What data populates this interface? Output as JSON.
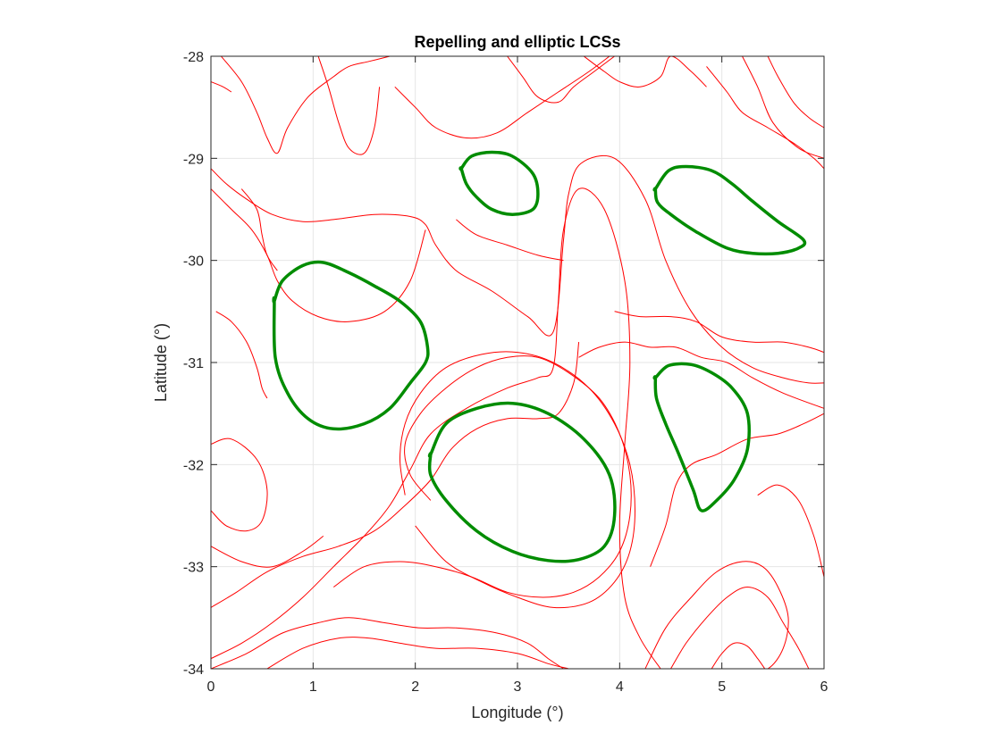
{
  "chart_data": {
    "type": "line",
    "title": "Repelling and elliptic LCSs",
    "xlabel": "Longitude (°)",
    "ylabel": "Latitude (°)",
    "xlim": [
      0,
      6
    ],
    "ylim": [
      -34,
      -28
    ],
    "xticks": [
      0,
      1,
      2,
      3,
      4,
      5,
      6
    ],
    "yticks": [
      -34,
      -33,
      -32,
      -31,
      -30,
      -29,
      -28
    ],
    "xtick_labels": [
      "0",
      "1",
      "2",
      "3",
      "4",
      "5",
      "6"
    ],
    "ytick_labels": [
      "-34",
      "-33",
      "-32",
      "-31",
      "-30",
      "-29",
      "-28"
    ],
    "grid": true,
    "colors": {
      "repelling": "#ff0000",
      "elliptic": "#008c00",
      "grid": "#e6e6e6",
      "axis": "#262626"
    },
    "elliptic_lcs": [
      {
        "x": [
          2.45,
          2.55,
          2.75,
          2.95,
          3.15,
          3.2,
          3.15,
          2.95,
          2.75,
          2.6,
          2.5,
          2.45
        ],
        "y": [
          -29.1,
          -28.98,
          -28.94,
          -28.98,
          -29.15,
          -29.35,
          -29.5,
          -29.55,
          -29.5,
          -29.38,
          -29.25,
          -29.1
        ]
      },
      {
        "x": [
          4.35,
          4.48,
          4.65,
          4.9,
          5.1,
          5.3,
          5.55,
          5.8,
          5.75,
          5.55,
          5.3,
          5.05,
          4.75,
          4.5,
          4.37,
          4.35
        ],
        "y": [
          -29.3,
          -29.12,
          -29.08,
          -29.12,
          -29.25,
          -29.42,
          -29.62,
          -29.8,
          -29.88,
          -29.93,
          -29.93,
          -29.88,
          -29.72,
          -29.55,
          -29.43,
          -29.3
        ]
      },
      {
        "x": [
          0.62,
          0.7,
          0.9,
          1.1,
          1.35,
          1.6,
          1.85,
          2.05,
          2.12,
          2.1,
          1.95,
          1.75,
          1.5,
          1.2,
          0.95,
          0.75,
          0.63,
          0.62
        ],
        "y": [
          -30.4,
          -30.2,
          -30.05,
          -30.02,
          -30.12,
          -30.25,
          -30.4,
          -30.6,
          -30.85,
          -31.0,
          -31.2,
          -31.45,
          -31.6,
          -31.65,
          -31.55,
          -31.3,
          -30.95,
          -30.4
        ]
      },
      {
        "x": [
          4.35,
          4.48,
          4.7,
          4.9,
          5.1,
          5.25,
          5.25,
          5.12,
          4.95,
          4.8,
          4.72,
          4.58,
          4.45,
          4.36,
          4.35
        ],
        "y": [
          -31.15,
          -31.03,
          -31.02,
          -31.1,
          -31.25,
          -31.5,
          -31.85,
          -32.15,
          -32.35,
          -32.45,
          -32.25,
          -31.9,
          -31.6,
          -31.35,
          -31.15
        ]
      },
      {
        "x": [
          2.15,
          2.3,
          2.6,
          2.95,
          3.3,
          3.65,
          3.9,
          3.95,
          3.85,
          3.6,
          3.3,
          2.95,
          2.6,
          2.3,
          2.15,
          2.15
        ],
        "y": [
          -31.9,
          -31.6,
          -31.45,
          -31.4,
          -31.5,
          -31.75,
          -32.1,
          -32.5,
          -32.8,
          -32.93,
          -32.94,
          -32.85,
          -32.65,
          -32.35,
          -32.1,
          -31.9
        ]
      }
    ],
    "repelling_lcs": [
      {
        "x": [
          0.0,
          0.15,
          0.35,
          0.6,
          0.9,
          1.2,
          1.6,
          1.95,
          2.1,
          2.2,
          2.4,
          2.75,
          3.1,
          3.35,
          3.45,
          3.5,
          3.62,
          3.95,
          4.25,
          4.45,
          4.7,
          5.0,
          5.3,
          5.6,
          5.85,
          6.0
        ],
        "y": [
          -29.1,
          -29.25,
          -29.4,
          -29.55,
          -29.62,
          -29.6,
          -29.55,
          -29.57,
          -29.65,
          -29.85,
          -30.1,
          -30.3,
          -30.55,
          -30.7,
          -29.8,
          -29.35,
          -29.05,
          -29.0,
          -29.4,
          -30.0,
          -30.5,
          -30.85,
          -31.05,
          -31.15,
          -31.2,
          -31.2
        ]
      },
      {
        "x": [
          0.0,
          0.2,
          0.4,
          0.55,
          0.65,
          0.8,
          1.05,
          1.35,
          1.7,
          1.95,
          2.1
        ],
        "y": [
          -29.3,
          -29.5,
          -29.7,
          -29.95,
          -30.2,
          -30.4,
          -30.55,
          -30.6,
          -30.5,
          -30.2,
          -29.7
        ]
      },
      {
        "x": [
          0.0,
          0.3,
          0.6,
          0.9,
          1.2,
          1.5,
          1.75,
          1.95,
          2.15,
          2.5,
          2.9,
          3.2,
          3.35,
          3.4,
          3.45,
          3.6,
          3.85,
          4.05,
          4.1,
          4.05,
          4.0,
          4.05,
          4.2,
          4.4
        ],
        "y": [
          -33.9,
          -33.75,
          -33.55,
          -33.3,
          -33.0,
          -32.7,
          -32.4,
          -32.05,
          -31.7,
          -31.45,
          -31.25,
          -31.15,
          -31.05,
          -30.4,
          -29.7,
          -29.3,
          -29.5,
          -30.2,
          -31.0,
          -31.8,
          -32.6,
          -33.3,
          -33.7,
          -34.0
        ]
      },
      {
        "x": [
          0.0,
          0.25,
          0.55,
          0.9,
          1.25,
          1.6,
          1.9,
          2.15,
          2.35,
          2.6,
          2.9,
          3.2,
          3.4,
          3.55,
          3.6
        ],
        "y": [
          -33.4,
          -33.25,
          -33.05,
          -32.9,
          -32.8,
          -32.65,
          -32.4,
          -32.15,
          -31.85,
          -31.65,
          -31.55,
          -31.55,
          -31.5,
          -31.2,
          -30.8
        ]
      },
      {
        "x": [
          1.2,
          1.5,
          1.85,
          2.2,
          2.55,
          2.9,
          3.25,
          3.55,
          3.8,
          4.0,
          4.1,
          4.1,
          4.0,
          3.8,
          3.5,
          3.2,
          2.9,
          2.6,
          2.3,
          2.05,
          1.9,
          1.95,
          2.15
        ],
        "y": [
          -33.2,
          -33.0,
          -32.95,
          -33.0,
          -33.1,
          -33.25,
          -33.3,
          -33.25,
          -33.1,
          -32.85,
          -32.5,
          -32.1,
          -31.7,
          -31.35,
          -31.1,
          -30.95,
          -30.95,
          -31.05,
          -31.25,
          -31.5,
          -31.8,
          -32.1,
          -32.35
        ]
      },
      {
        "x": [
          2.0,
          2.3,
          2.65,
          3.0,
          3.35,
          3.7,
          3.95,
          4.1,
          4.15,
          4.1,
          3.95,
          3.7,
          3.35,
          3.0,
          2.65,
          2.3,
          2.05,
          1.9,
          1.85,
          1.9
        ],
        "y": [
          -32.6,
          -32.95,
          -33.15,
          -33.3,
          -33.4,
          -33.35,
          -33.15,
          -32.85,
          -32.45,
          -32.0,
          -31.6,
          -31.25,
          -31.0,
          -30.9,
          -30.92,
          -31.05,
          -31.3,
          -31.6,
          -31.95,
          -32.3
        ]
      },
      {
        "x": [
          0.0,
          0.2,
          0.45,
          0.55,
          0.5,
          0.35,
          0.15,
          0.0
        ],
        "y": [
          -31.8,
          -31.75,
          -31.95,
          -32.25,
          -32.55,
          -32.65,
          -32.6,
          -32.45
        ]
      },
      {
        "x": [
          0.1,
          0.3,
          0.45,
          0.55,
          0.65,
          0.75,
          0.95,
          1.2,
          1.35,
          1.55,
          1.75
        ],
        "y": [
          -28.0,
          -28.25,
          -28.55,
          -28.8,
          -28.95,
          -28.7,
          -28.4,
          -28.2,
          -28.1,
          -28.05,
          -28.0
        ]
      },
      {
        "x": [
          1.05,
          1.15,
          1.25,
          1.35,
          1.5,
          1.6,
          1.65
        ],
        "y": [
          -28.0,
          -28.3,
          -28.65,
          -28.9,
          -28.95,
          -28.7,
          -28.3
        ]
      },
      {
        "x": [
          0.0,
          0.12,
          0.2
        ],
        "y": [
          -28.25,
          -28.3,
          -28.35
        ]
      },
      {
        "x": [
          1.8,
          2.0,
          2.2,
          2.5,
          2.8,
          3.1,
          3.4,
          3.7,
          3.9
        ],
        "y": [
          -28.3,
          -28.5,
          -28.7,
          -28.8,
          -28.75,
          -28.55,
          -28.35,
          -28.15,
          -28.0
        ]
      },
      {
        "x": [
          3.65,
          3.85,
          4.0,
          4.2,
          4.4,
          4.5,
          4.7,
          4.85
        ],
        "y": [
          -28.0,
          -28.15,
          -28.25,
          -28.3,
          -28.2,
          -28.0,
          -28.15,
          -28.3
        ]
      },
      {
        "x": [
          5.2,
          5.35,
          5.5,
          5.75,
          6.0
        ],
        "y": [
          -28.0,
          -28.3,
          -28.65,
          -28.9,
          -29.0
        ]
      },
      {
        "x": [
          5.45,
          5.55,
          5.7,
          5.85,
          6.0
        ],
        "y": [
          -28.0,
          -28.2,
          -28.45,
          -28.6,
          -28.7
        ]
      },
      {
        "x": [
          4.85,
          5.05,
          5.2,
          5.45,
          5.7,
          5.9,
          6.0
        ],
        "y": [
          -28.1,
          -28.35,
          -28.55,
          -28.7,
          -28.85,
          -29.0,
          -29.1
        ]
      },
      {
        "x": [
          3.95,
          4.2,
          4.5,
          4.75,
          5.0,
          5.3,
          5.6,
          5.85,
          6.0
        ],
        "y": [
          -30.5,
          -30.55,
          -30.55,
          -30.6,
          -30.75,
          -30.8,
          -30.8,
          -30.85,
          -30.9
        ]
      },
      {
        "x": [
          3.6,
          3.8,
          4.05,
          4.3,
          4.55,
          4.8,
          5.05,
          5.3,
          5.6,
          6.0
        ],
        "y": [
          -30.95,
          -30.85,
          -30.8,
          -30.85,
          -30.85,
          -30.95,
          -31.0,
          -31.15,
          -31.3,
          -31.45
        ]
      },
      {
        "x": [
          4.3,
          4.45,
          4.55,
          4.7,
          4.95,
          5.25,
          5.55,
          5.8,
          6.0
        ],
        "y": [
          -33.0,
          -32.6,
          -32.2,
          -32.0,
          -31.9,
          -31.75,
          -31.7,
          -31.6,
          -31.5
        ]
      },
      {
        "x": [
          4.25,
          4.45,
          4.7,
          4.95,
          5.2,
          5.4,
          5.55,
          5.65,
          5.6,
          5.45,
          5.25
        ],
        "y": [
          -34.0,
          -33.6,
          -33.3,
          -33.05,
          -32.95,
          -33.0,
          -33.2,
          -33.5,
          -33.8,
          -34.0,
          -34.0
        ]
      },
      {
        "x": [
          4.5,
          4.65,
          4.85,
          5.05,
          5.25,
          5.45,
          5.6,
          5.75,
          5.85
        ],
        "y": [
          -34.0,
          -33.75,
          -33.5,
          -33.3,
          -33.2,
          -33.3,
          -33.55,
          -33.8,
          -34.0
        ]
      },
      {
        "x": [
          4.9,
          5.0,
          5.12,
          5.25,
          5.35,
          5.42
        ],
        "y": [
          -34.0,
          -33.85,
          -33.75,
          -33.78,
          -33.9,
          -34.0
        ]
      },
      {
        "x": [
          5.35,
          5.55,
          5.75,
          5.9,
          6.0
        ],
        "y": [
          -32.3,
          -32.2,
          -32.35,
          -32.7,
          -33.1
        ]
      },
      {
        "x": [
          0.0,
          0.3,
          0.6,
          0.9,
          1.1
        ],
        "y": [
          -32.8,
          -32.95,
          -33.0,
          -32.85,
          -32.7
        ]
      },
      {
        "x": [
          0.0,
          0.35,
          0.7,
          1.05,
          1.35,
          1.7,
          2.05,
          2.4,
          2.8,
          3.1,
          3.3,
          3.45
        ],
        "y": [
          -34.0,
          -33.85,
          -33.65,
          -33.55,
          -33.5,
          -33.55,
          -33.6,
          -33.6,
          -33.65,
          -33.75,
          -33.9,
          -34.0
        ]
      },
      {
        "x": [
          0.55,
          0.9,
          1.25,
          1.55,
          1.85,
          2.2,
          2.6,
          3.0,
          3.3,
          3.5
        ],
        "y": [
          -34.0,
          -33.8,
          -33.7,
          -33.7,
          -33.75,
          -33.8,
          -33.8,
          -33.85,
          -33.95,
          -34.0
        ]
      },
      {
        "x": [
          0.05,
          0.2,
          0.35,
          0.45,
          0.5,
          0.55
        ],
        "y": [
          -30.5,
          -30.6,
          -30.8,
          -31.05,
          -31.25,
          -31.35
        ]
      },
      {
        "x": [
          0.3,
          0.45,
          0.5,
          0.55,
          0.65
        ],
        "y": [
          -29.3,
          -29.5,
          -29.75,
          -29.95,
          -30.1
        ]
      },
      {
        "x": [
          2.9,
          3.05,
          3.2,
          3.4,
          3.55,
          3.75,
          3.95
        ],
        "y": [
          -28.0,
          -28.2,
          -28.4,
          -28.45,
          -28.3,
          -28.15,
          -28.0
        ]
      },
      {
        "x": [
          2.4,
          2.6,
          2.9,
          3.2,
          3.45
        ],
        "y": [
          -29.6,
          -29.75,
          -29.85,
          -29.95,
          -30.0
        ]
      }
    ]
  }
}
